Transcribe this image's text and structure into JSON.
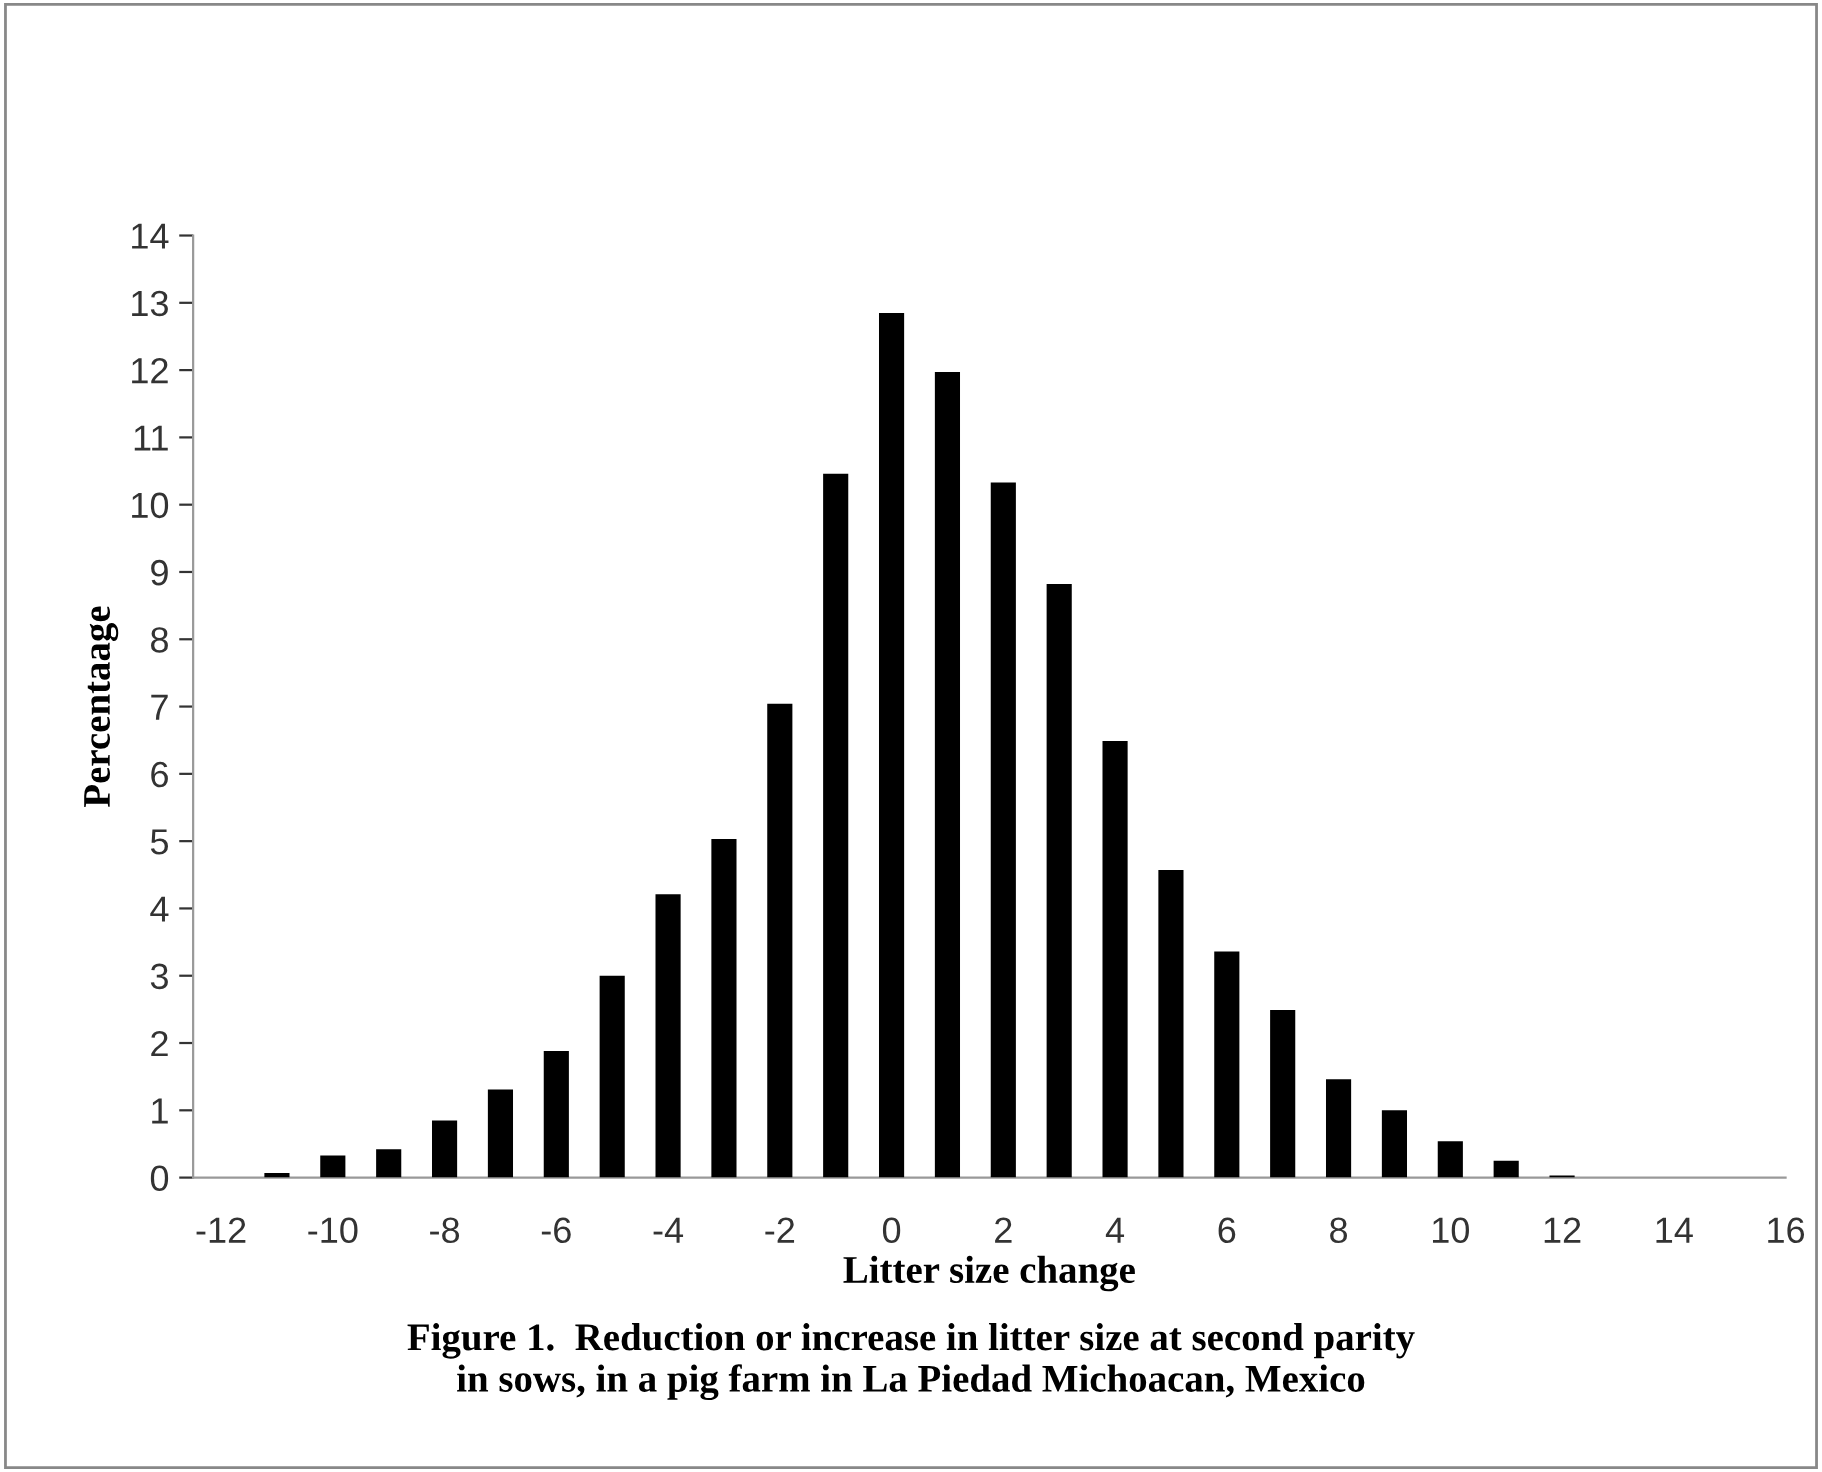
{
  "chart_data": {
    "type": "bar",
    "xlabel": "Litter size change",
    "ylabel": "Percentaage",
    "x": [
      -11,
      -10,
      -9,
      -8,
      -7,
      -6,
      -5,
      -4,
      -3,
      -2,
      -1,
      0,
      1,
      2,
      3,
      4,
      5,
      6,
      7,
      8,
      9,
      10,
      11,
      12
    ],
    "values": [
      0.07,
      0.33,
      0.42,
      0.85,
      1.31,
      1.88,
      3.0,
      4.21,
      5.03,
      7.04,
      10.46,
      12.85,
      11.97,
      10.33,
      8.82,
      6.49,
      4.57,
      3.36,
      2.49,
      1.46,
      1.0,
      0.54,
      0.25,
      0.03
    ],
    "color": "#000000",
    "xlim": [
      -12.5,
      16
    ],
    "xticks": [
      -12,
      -10,
      -8,
      -6,
      -4,
      -2,
      0,
      2,
      4,
      6,
      8,
      10,
      12,
      14,
      16
    ],
    "ylim": [
      0,
      14
    ],
    "yticks": [
      0,
      1,
      2,
      3,
      4,
      5,
      6,
      7,
      8,
      9,
      10,
      11,
      12,
      13,
      14
    ],
    "grid": false,
    "legend": false,
    "annotations": [
      "Figure 1.  Reduction or increase in litter size at second parity\nin sows, in a pig farm in La Piedad Michoacan, Mexico"
    ]
  }
}
